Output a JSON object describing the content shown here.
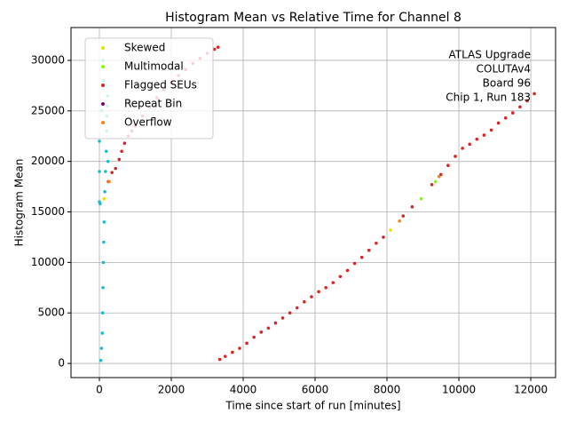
{
  "chart_data": {
    "type": "scatter",
    "title": "Histogram Mean vs Relative Time for Channel 8",
    "xlabel": "Time since start of run [minutes]",
    "ylabel": "Histogram Mean",
    "annotation": [
      "ATLAS Upgrade",
      "COLUTAv4",
      "Board 96",
      "Chip 1, Run 183"
    ],
    "xlim": [
      -790,
      12690
    ],
    "ylim": [
      -1400,
      33250
    ],
    "xticks": [
      0,
      2000,
      4000,
      6000,
      8000,
      10000,
      12000
    ],
    "yticks": [
      0,
      5000,
      10000,
      15000,
      20000,
      25000,
      30000
    ],
    "grid": true,
    "legend": "upper left",
    "series": [
      {
        "color": "#17becf",
        "x": [
          0,
          0,
          0,
          20,
          40,
          60,
          80,
          90,
          100,
          110,
          120,
          130,
          150,
          170,
          190,
          200,
          210,
          220,
          230,
          240,
          100,
          120,
          60
        ],
        "values": [
          16000,
          19000,
          22000,
          15800,
          300,
          1500,
          3000,
          5000,
          7500,
          10000,
          12000,
          14000,
          17000,
          19000,
          21000,
          23000,
          24500,
          25500,
          26500,
          20000,
          30000,
          28000,
          25000
        ]
      },
      {
        "name": "Skewed",
        "color": "#e5e500",
        "x": [
          130,
          8100
        ],
        "values": [
          16300,
          13200
        ]
      },
      {
        "name": "Multimodal",
        "color": "#7fff00",
        "x": [
          8950,
          9350
        ],
        "values": [
          16300,
          18000
        ]
      },
      {
        "name": "Flagged SEUs",
        "color": "#d62728",
        "x": [
          250,
          350,
          450,
          550,
          620,
          700,
          800,
          900,
          1000,
          1200,
          1400,
          1600,
          1800,
          2000,
          2200,
          2400,
          2600,
          2800,
          3000,
          3200,
          3300,
          3350,
          3500,
          3700,
          3900,
          4100,
          4300,
          4500,
          4700,
          4900,
          5100,
          5300,
          5500,
          5700,
          5900,
          6100,
          6300,
          6500,
          6700,
          6900,
          7100,
          7300,
          7500,
          7700,
          7900,
          8450,
          8700,
          9250,
          9500,
          9700,
          9900,
          10100,
          10300,
          10500,
          10700,
          10900,
          11100,
          11300,
          11500,
          11700,
          11900,
          12100
        ],
        "values": [
          18000,
          18900,
          19300,
          20200,
          21000,
          21800,
          22500,
          23000,
          23500,
          24500,
          25400,
          26300,
          27100,
          27800,
          28500,
          29100,
          29700,
          30200,
          30700,
          31100,
          31300,
          400,
          700,
          1100,
          1500,
          2000,
          2600,
          3100,
          3500,
          4000,
          4500,
          5000,
          5500,
          6100,
          6600,
          7100,
          7500,
          8000,
          8600,
          9200,
          9900,
          10500,
          11200,
          11900,
          12500,
          14600,
          15500,
          17700,
          18700,
          19600,
          20500,
          21300,
          21700,
          22200,
          22600,
          23100,
          23800,
          24300,
          24800,
          25400,
          26000,
          26700
        ]
      },
      {
        "name": "Repeat Bin",
        "color": "#800080",
        "x": [],
        "values": []
      },
      {
        "name": "Overflow",
        "color": "#ff7f0e",
        "x": [
          270,
          8350,
          9450
        ],
        "values": [
          18000,
          14100,
          18500
        ]
      }
    ]
  }
}
